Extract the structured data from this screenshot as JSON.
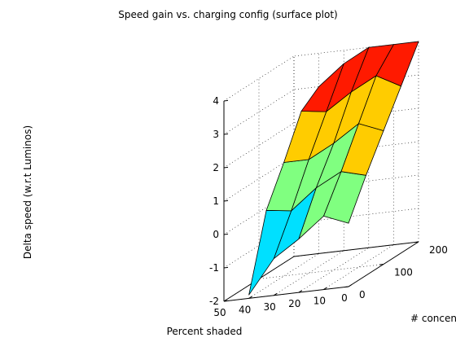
{
  "chart_data": {
    "type": "surface",
    "title": "Speed gain vs. charging config (surface plot)",
    "xlabel": "Percent shaded",
    "ylabel": "# concentrators",
    "zlabel": "Delta speed (w.r.t Luminos)",
    "xlim": [
      0,
      50
    ],
    "ylim": [
      0,
      200
    ],
    "zlim": [
      -2,
      4
    ],
    "xticks": [
      "0",
      "10",
      "20",
      "30",
      "40",
      "50"
    ],
    "yticks": [
      "0",
      "100",
      "200"
    ],
    "zticks": [
      "-2",
      "-1",
      "0",
      "1",
      "2",
      "3",
      "4"
    ],
    "grid": true,
    "colormap": "jet",
    "x": [
      40,
      30,
      20,
      10,
      0
    ],
    "y": [
      0,
      50,
      100,
      150,
      200
    ],
    "z": [
      [
        -1.9,
        0.3,
        1.4,
        2.6,
        3.0
      ],
      [
        -0.9,
        0.2,
        1.4,
        2.5,
        3.6
      ],
      [
        -0.4,
        0.8,
        1.8,
        3.0,
        4.0
      ],
      [
        0.2,
        1.2,
        2.3,
        3.4,
        4.0
      ],
      [
        -0.1,
        1.0,
        2.0,
        3.0,
        4.0
      ]
    ]
  }
}
